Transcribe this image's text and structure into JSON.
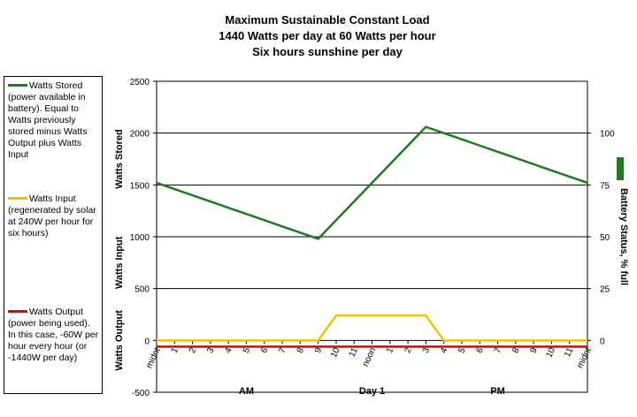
{
  "titles": {
    "line1": "Maximum Sustainable Constant Load",
    "line2": "1440 Watts per day at 60 Watts per hour",
    "line3": "Six hours sunshine per day"
  },
  "legend": [
    {
      "text": "Watts Stored (power available in battery). Equal to Watts previously stored minus Watts Output plus Watts Input",
      "color": "#1e7b1e"
    },
    {
      "text": "Watts Input (regenerated by solar at 240W per hour for six hours)",
      "color": "#f2c200"
    },
    {
      "text": "Watts Output (power being used).  In this case, -60W per hour every hour (or -1440W per day)",
      "color": "#e00000"
    }
  ],
  "chart_data": {
    "type": "line",
    "title": "Maximum Sustainable Constant Load",
    "subtitle": "1440 Watts per day at 60 Watts per hour Six hours sunshine per day",
    "categories": [
      "midnt",
      "1",
      "2",
      "3",
      "4",
      "5",
      "6",
      "7",
      "8",
      "9",
      "10",
      "11",
      "noon",
      "1",
      "2",
      "3",
      "4",
      "5",
      "6",
      "7",
      "8",
      "9",
      "10",
      "11",
      "midnt"
    ],
    "category_groups": [
      "AM",
      "Day 1",
      "PM"
    ],
    "ylabels": [
      "Watts Stored",
      "Watts Input",
      "Watts Output"
    ],
    "y2label": "Battery Status, % full",
    "ylim": [
      -500,
      2500
    ],
    "yticks": [
      -500,
      0,
      500,
      1000,
      1500,
      2000,
      2500
    ],
    "y2lim": [
      -25,
      125
    ],
    "y2ticks": [
      0,
      25,
      50,
      75,
      100
    ],
    "grid": true,
    "legend_position": "left",
    "series": [
      {
        "name": "Watts Stored",
        "color": "#1e7b1e",
        "values": [
          1520,
          1460,
          1400,
          1340,
          1280,
          1220,
          1160,
          1100,
          1040,
          980,
          1160,
          1340,
          1520,
          1700,
          1880,
          2060,
          2000,
          1940,
          1880,
          1820,
          1760,
          1700,
          1640,
          1580,
          1520
        ]
      },
      {
        "name": "Watts Input",
        "color": "#f2c200",
        "values": [
          0,
          0,
          0,
          0,
          0,
          0,
          0,
          0,
          0,
          0,
          240,
          240,
          240,
          240,
          240,
          240,
          0,
          0,
          0,
          0,
          0,
          0,
          0,
          0,
          0
        ]
      },
      {
        "name": "Watts Output",
        "color": "#e00000",
        "values": [
          -60,
          -60,
          -60,
          -60,
          -60,
          -60,
          -60,
          -60,
          -60,
          -60,
          -60,
          -60,
          -60,
          -60,
          -60,
          -60,
          -60,
          -60,
          -60,
          -60,
          -60,
          -60,
          -60,
          -60,
          -60
        ]
      }
    ],
    "y2_indicator": {
      "color": "#1e7b1e"
    }
  }
}
